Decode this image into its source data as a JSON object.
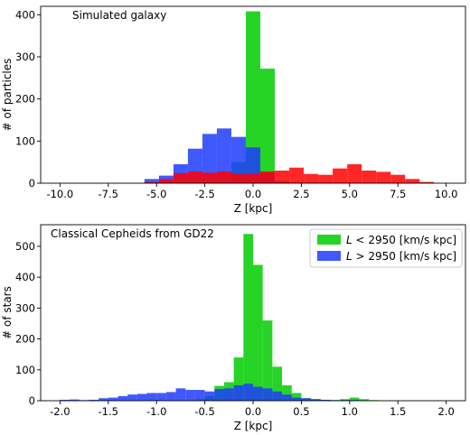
{
  "chart_data": [
    {
      "type": "bar",
      "title": "",
      "annotation": "Simulated galaxy",
      "xlabel": "Z [kpc]",
      "ylabel": "# of particles",
      "xlim": [
        -11,
        11
      ],
      "ylim": [
        0,
        420
      ],
      "xticks": [
        "-10.0",
        "-7.5",
        "-5.0",
        "-2.5",
        "0.0",
        "2.5",
        "5.0",
        "7.5",
        "10.0"
      ],
      "yticks": [
        "0",
        "100",
        "200",
        "300",
        "400"
      ],
      "bin_width": 0.75,
      "series": [
        {
          "color": "#00cc00",
          "x": [
            -0.75,
            0,
            0.75
          ],
          "values": [
            50,
            408,
            272
          ]
        },
        {
          "color": "#1f3cff",
          "x": [
            -5.25,
            -4.5,
            -3.75,
            -3.0,
            -2.25,
            -1.5,
            -0.75,
            0,
            0.75,
            1.5
          ],
          "values": [
            10,
            18,
            45,
            82,
            117,
            130,
            110,
            85,
            25,
            5
          ]
        },
        {
          "color": "#ff0000",
          "x": [
            -5.25,
            -4.5,
            -3.75,
            -3.0,
            -2.25,
            -1.5,
            -0.75,
            0,
            0.75,
            1.5,
            2.25,
            3.0,
            3.75,
            4.5,
            5.25,
            6.0,
            6.75,
            7.5,
            8.25,
            9.0
          ],
          "values": [
            3,
            10,
            24,
            28,
            25,
            28,
            22,
            22,
            28,
            30,
            37,
            22,
            20,
            35,
            45,
            30,
            27,
            20,
            10,
            3
          ]
        }
      ]
    },
    {
      "type": "bar",
      "title": "",
      "annotation": "Classical Cepheids from GD22",
      "xlabel": "Z [kpc]",
      "ylabel": "# of stars",
      "xlim": [
        -2.2,
        2.2
      ],
      "ylim": [
        0,
        570
      ],
      "xticks": [
        "-2.0",
        "-1.5",
        "-1.0",
        "-0.5",
        "0.0",
        "0.5",
        "1.0",
        "1.5",
        "2.0"
      ],
      "yticks": [
        "0",
        "100",
        "200",
        "300",
        "400",
        "500"
      ],
      "bin_width": 0.1,
      "legend_position": "top-right",
      "series": [
        {
          "name_prefix": "L",
          "name_op": "<",
          "name_suffix": "2950 [km/s kpc]",
          "color": "#00cc00",
          "x": [
            -0.55,
            -0.45,
            -0.35,
            -0.25,
            -0.15,
            -0.05,
            0.05,
            0.15,
            0.25,
            0.35,
            0.45,
            0.55,
            0.65,
            0.75,
            0.85,
            0.95,
            1.05,
            1.15,
            1.25
          ],
          "values": [
            5,
            15,
            48,
            60,
            140,
            540,
            440,
            260,
            110,
            50,
            25,
            8,
            5,
            3,
            2,
            5,
            10,
            5,
            2
          ]
        },
        {
          "name_prefix": "L",
          "name_op": ">",
          "name_suffix": "2950 [km/s kpc]",
          "color": "#1f3cff",
          "x": [
            -1.95,
            -1.85,
            -1.75,
            -1.65,
            -1.55,
            -1.45,
            -1.35,
            -1.25,
            -1.15,
            -1.05,
            -0.95,
            -0.85,
            -0.75,
            -0.65,
            -0.55,
            -0.45,
            -0.35,
            -0.25,
            -0.15,
            -0.05,
            0.05,
            0.15,
            0.25,
            0.35,
            0.45,
            0.55,
            0.65,
            0.75,
            0.85,
            0.95,
            1.05
          ],
          "values": [
            3,
            4,
            2,
            3,
            8,
            10,
            15,
            20,
            22,
            25,
            25,
            28,
            40,
            35,
            35,
            30,
            38,
            40,
            50,
            55,
            45,
            40,
            30,
            20,
            10,
            8,
            5,
            3,
            2,
            2,
            2
          ]
        }
      ]
    }
  ]
}
